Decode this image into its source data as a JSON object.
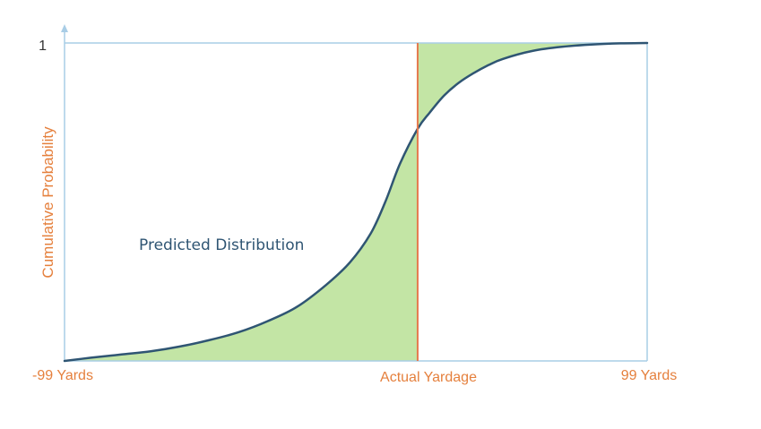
{
  "chart_data": {
    "type": "line",
    "title": "",
    "ylabel": "Cumulative Probability",
    "xlabel": "",
    "xlim": [
      -99,
      99
    ],
    "ylim": [
      0,
      1
    ],
    "x_tick_labels": [
      {
        "x": -99,
        "label": "-99 Yards"
      },
      {
        "x": 21,
        "label": "Actual Yardage"
      },
      {
        "x": 99,
        "label": "99 Yards"
      }
    ],
    "y_tick_labels": [
      {
        "y": 1,
        "label": "1"
      }
    ],
    "actual_yardage_x": 21,
    "series": [
      {
        "name": "Predicted Distribution",
        "x": [
          -99,
          -90,
          -80,
          -70,
          -60,
          -50,
          -40,
          -30,
          -20,
          -10,
          -2,
          5,
          10,
          15,
          21,
          25,
          30,
          35,
          40,
          45,
          50,
          60,
          70,
          80,
          90,
          99
        ],
        "y": [
          0.0,
          0.01,
          0.02,
          0.03,
          0.045,
          0.065,
          0.09,
          0.125,
          0.17,
          0.24,
          0.31,
          0.4,
          0.5,
          0.62,
          0.73,
          0.78,
          0.835,
          0.875,
          0.905,
          0.93,
          0.95,
          0.975,
          0.988,
          0.995,
          0.999,
          1.0
        ]
      }
    ],
    "annotations": [
      {
        "text": "Predicted Distribution"
      }
    ],
    "colors": {
      "curve": "#2f5573",
      "fill": "#c3e5a5",
      "actual_line": "#e5794d",
      "axis": "#a9cde6",
      "label": "#e5803d",
      "annotation": "#2f5573",
      "y_tick": "#333333"
    },
    "grid": false,
    "legend": "none"
  }
}
